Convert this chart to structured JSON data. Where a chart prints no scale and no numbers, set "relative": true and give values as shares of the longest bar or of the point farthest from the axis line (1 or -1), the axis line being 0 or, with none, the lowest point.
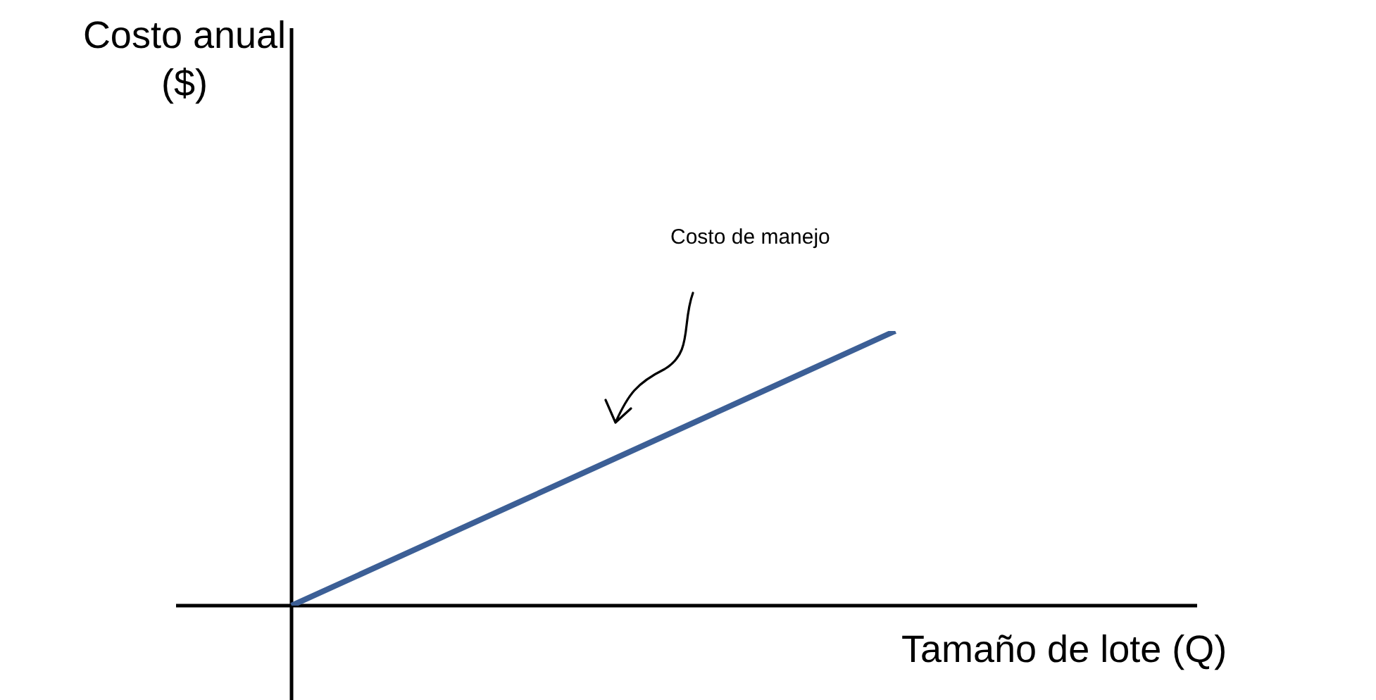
{
  "chart_data": {
    "type": "line",
    "relative": true,
    "xlabel": "Tamaño de lote (Q)",
    "categories": [
      null,
      null,
      null,
      null,
      null,
      null,
      null,
      null,
      null,
      null,
      null,
      null,
      null
    ],
    "series": [
      {
        "color": "#3c5f96",
        "values": [
          0,
          0.125,
          0.25,
          0.375,
          0.5,
          0.625,
          0.75,
          0.875,
          1,
          null,
          null,
          null,
          null
        ]
      }
    ],
    "annotations": [
      "Costo anual ($)",
      "Costo de manejo"
    ],
    "legend": false,
    "marker": "none"
  }
}
